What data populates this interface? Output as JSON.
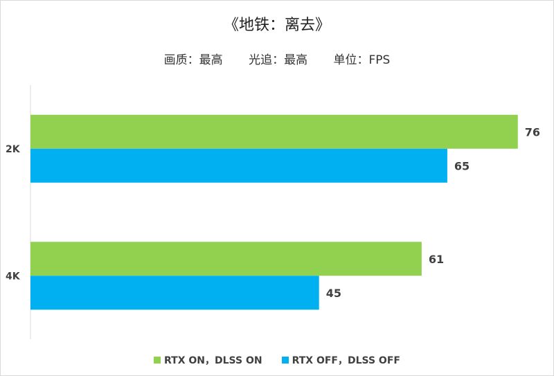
{
  "chart_data": {
    "type": "bar",
    "orientation": "horizontal",
    "title": "《地铁：离去》",
    "subtitle": [
      "画质：最高",
      "光追：最高",
      "单位：FPS"
    ],
    "categories": [
      "2K",
      "4K"
    ],
    "series": [
      {
        "name": "RTX ON，DLSS ON",
        "color": "#92D050",
        "values": [
          76,
          61
        ]
      },
      {
        "name": "RTX OFF，DLSS OFF",
        "color": "#00B0F0",
        "values": [
          65,
          45
        ]
      }
    ],
    "xlim": [
      0,
      82
    ],
    "grid": false,
    "data_labels": true,
    "legend": "bottom"
  }
}
